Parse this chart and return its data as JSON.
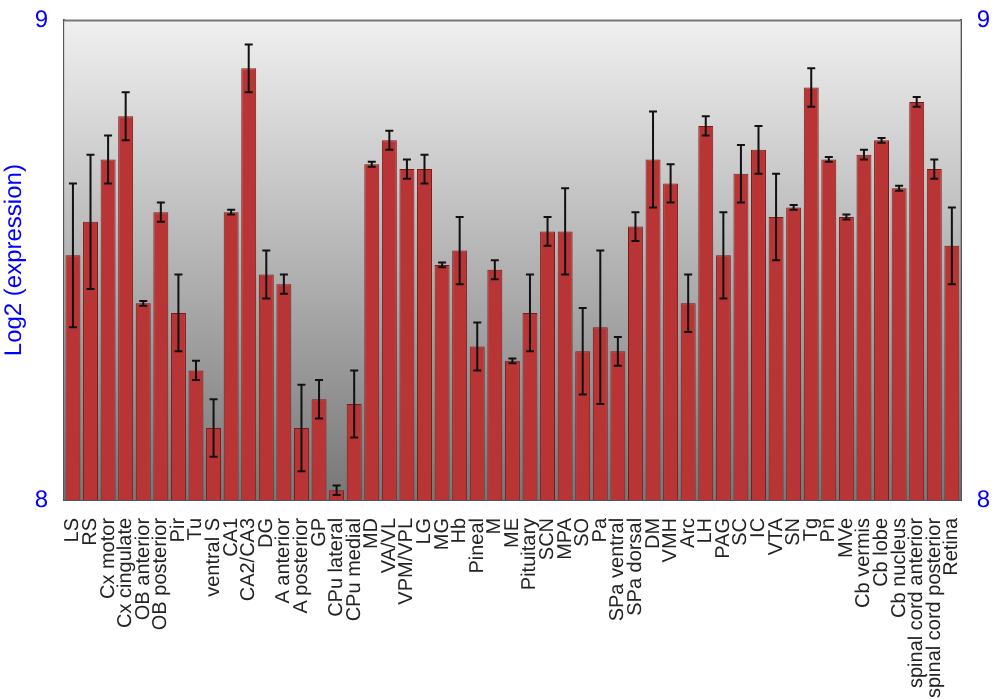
{
  "chart_data": {
    "type": "bar",
    "ylabel": "Log2 (expression)",
    "categories": [
      "LS",
      "RS",
      "Cx motor",
      "Cx cingulate",
      "OB anterior",
      "OB posterior",
      "Pir",
      "Tu",
      "ventral S",
      "CA1",
      "CA2/CA3",
      "DG",
      "A anterior",
      "A posterior",
      "GP",
      "CPu lateral",
      "CPu medial",
      "MD",
      "VA/VL",
      "VPM/VPL",
      "LG",
      "MG",
      "Hb",
      "Pineal",
      "M",
      "ME",
      "Pituitary",
      "SCN",
      "MPA",
      "SO",
      "Pa",
      "SPa ventral",
      "SPa dorsal",
      "DM",
      "VMH",
      "Arc",
      "LH",
      "PAG",
      "SC",
      "IC",
      "VTA",
      "SN",
      "Tg",
      "Pn",
      "MVe",
      "Cb vermis",
      "Cb lobe",
      "Cb nucleus",
      "spinal cord anterior",
      "spinal cord posterior",
      "Retina"
    ],
    "values": [
      8.51,
      8.58,
      8.71,
      8.8,
      8.41,
      8.6,
      8.39,
      8.27,
      8.15,
      8.6,
      8.9,
      8.47,
      8.45,
      8.15,
      8.21,
      8.02,
      8.2,
      8.7,
      8.75,
      8.69,
      8.69,
      8.49,
      8.52,
      8.32,
      8.48,
      8.29,
      8.39,
      8.56,
      8.56,
      8.31,
      8.36,
      8.31,
      8.57,
      8.71,
      8.66,
      8.41,
      8.78,
      8.51,
      8.68,
      8.73,
      8.59,
      8.61,
      8.86,
      8.71,
      8.59,
      8.72,
      8.75,
      8.65,
      8.83,
      8.69,
      8.53
    ],
    "errors": [
      0.15,
      0.14,
      0.05,
      0.05,
      0.005,
      0.02,
      0.08,
      0.02,
      0.06,
      0.005,
      0.05,
      0.05,
      0.02,
      0.09,
      0.04,
      0.01,
      0.07,
      0.005,
      0.02,
      0.02,
      0.03,
      0.005,
      0.07,
      0.05,
      0.02,
      0.005,
      0.08,
      0.03,
      0.09,
      0.09,
      0.16,
      0.03,
      0.03,
      0.1,
      0.04,
      0.06,
      0.02,
      0.09,
      0.06,
      0.05,
      0.09,
      0.005,
      0.04,
      0.005,
      0.005,
      0.01,
      0.005,
      0.005,
      0.01,
      0.02,
      0.08
    ],
    "color": "#b93535",
    "ylim": [
      8,
      9
    ],
    "yticks": [
      8,
      9
    ],
    "y2lim": [
      8,
      9
    ],
    "y2ticks": [
      8,
      9
    ],
    "grid": false,
    "legend": false
  }
}
